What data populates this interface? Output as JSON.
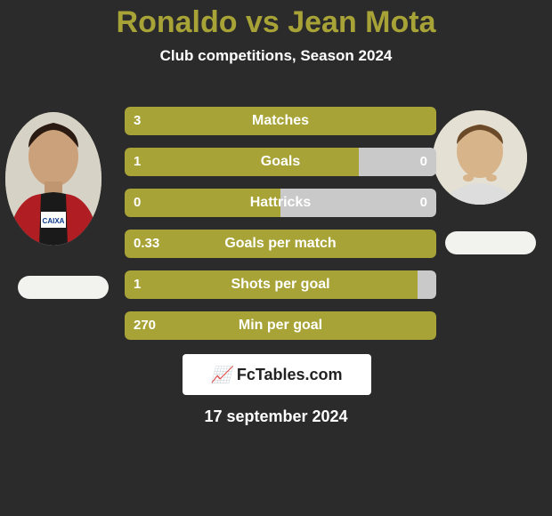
{
  "background_color": "#2b2b2b",
  "title": "Ronaldo vs Jean Mota",
  "title_color": "#a8a337",
  "subtitle": "Club competitions, Season 2024",
  "player_left": {
    "name": "Ronaldo"
  },
  "player_right": {
    "name": "Jean Mota"
  },
  "bar_colors": {
    "left": "#a8a337",
    "right": "#c9c9c9"
  },
  "stats": [
    {
      "label": "Matches",
      "left_val": "3",
      "right_val": "",
      "left_pct": 100,
      "right_pct": 0
    },
    {
      "label": "Goals",
      "left_val": "1",
      "right_val": "0",
      "left_pct": 75,
      "right_pct": 25
    },
    {
      "label": "Hattricks",
      "left_val": "0",
      "right_val": "0",
      "left_pct": 50,
      "right_pct": 50
    },
    {
      "label": "Goals per match",
      "left_val": "0.33",
      "right_val": "",
      "left_pct": 100,
      "right_pct": 0
    },
    {
      "label": "Shots per goal",
      "left_val": "1",
      "right_val": "",
      "left_pct": 94,
      "right_pct": 6
    },
    {
      "label": "Min per goal",
      "left_val": "270",
      "right_val": "",
      "left_pct": 100,
      "right_pct": 0
    }
  ],
  "attribution": {
    "site": "FcTables.com"
  },
  "date": "17 september 2024"
}
